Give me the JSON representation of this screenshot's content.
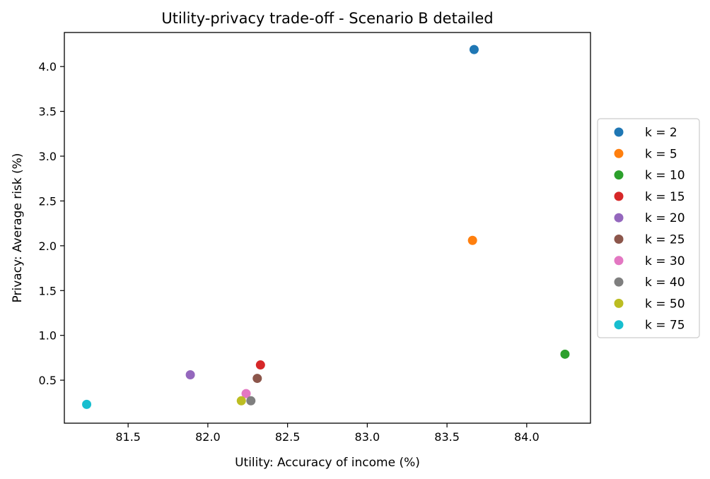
{
  "chart_data": {
    "type": "scatter",
    "title": "Utility-privacy trade-off - Scenario B detailed",
    "xlabel": "Utility: Accuracy of income (%)",
    "ylabel": "Privacy: Average risk (%)",
    "xlim": [
      81.1,
      84.4
    ],
    "ylim": [
      0.02,
      4.38
    ],
    "xticks": [
      81.5,
      82.0,
      82.5,
      83.0,
      83.5,
      84.0
    ],
    "xtick_labels": [
      "81.5",
      "82.0",
      "82.5",
      "83.0",
      "83.5",
      "84.0"
    ],
    "yticks": [
      0.5,
      1.0,
      1.5,
      2.0,
      2.5,
      3.0,
      3.5,
      4.0
    ],
    "ytick_labels": [
      "0.5",
      "1.0",
      "1.5",
      "2.0",
      "2.5",
      "3.0",
      "3.5",
      "4.0"
    ],
    "grid": false,
    "legend_position": "center-right-outside",
    "series": [
      {
        "name": "k = 2",
        "color": "#1f77b4",
        "x": 83.67,
        "y": 4.19
      },
      {
        "name": "k = 5",
        "color": "#ff7f0e",
        "x": 83.66,
        "y": 2.06
      },
      {
        "name": "k = 10",
        "color": "#2ca02c",
        "x": 84.24,
        "y": 0.79
      },
      {
        "name": "k = 15",
        "color": "#d62728",
        "x": 82.33,
        "y": 0.67
      },
      {
        "name": "k = 20",
        "color": "#9467bd",
        "x": 81.89,
        "y": 0.56
      },
      {
        "name": "k = 25",
        "color": "#8c564b",
        "x": 82.31,
        "y": 0.52
      },
      {
        "name": "k = 30",
        "color": "#e377c2",
        "x": 82.24,
        "y": 0.35
      },
      {
        "name": "k = 40",
        "color": "#7f7f7f",
        "x": 82.27,
        "y": 0.27
      },
      {
        "name": "k = 50",
        "color": "#bcbd22",
        "x": 82.21,
        "y": 0.27
      },
      {
        "name": "k = 75",
        "color": "#17becf",
        "x": 81.24,
        "y": 0.23
      }
    ]
  }
}
